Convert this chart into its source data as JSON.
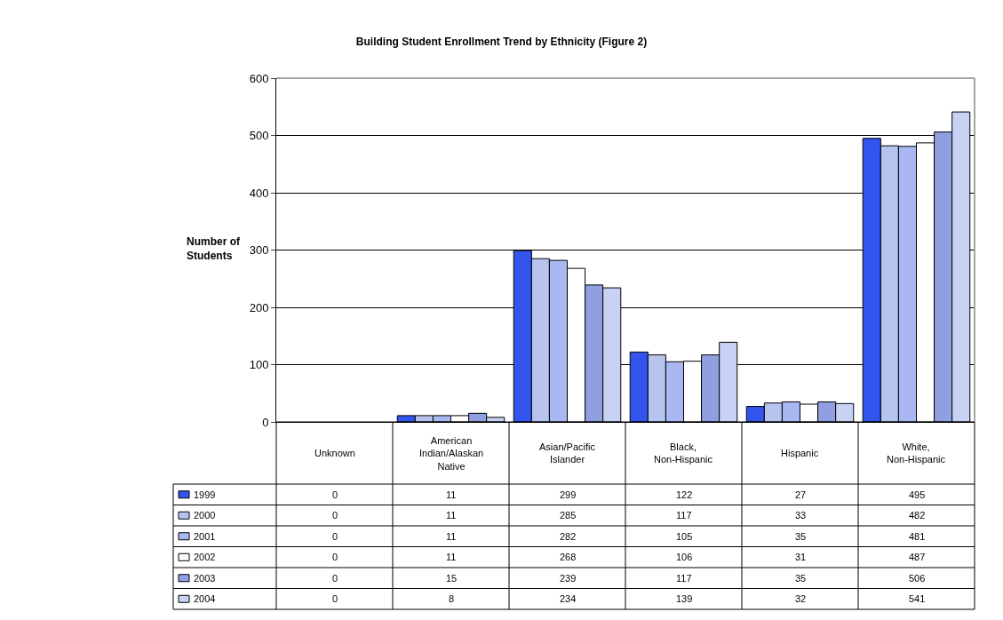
{
  "chart_data": {
    "type": "bar",
    "title": "Building Student Enrollment Trend by Ethnicity (Figure 2)",
    "ylabel": "Number of Students",
    "categories": [
      "Unknown",
      "American Indian/Alaskan Native",
      "Asian/Pacific Islander",
      "Black, Non-Hispanic",
      "Hispanic",
      "White, Non-Hispanic"
    ],
    "series": [
      {
        "name": "1999",
        "color": "#3355ee",
        "values": [
          0,
          11,
          299,
          122,
          27,
          495
        ]
      },
      {
        "name": "2000",
        "color": "#b8c4f0",
        "values": [
          0,
          11,
          285,
          117,
          33,
          482
        ]
      },
      {
        "name": "2001",
        "color": "#a9b8f2",
        "values": [
          0,
          11,
          282,
          105,
          35,
          481
        ]
      },
      {
        "name": "2002",
        "color": "#ffffff",
        "values": [
          0,
          11,
          268,
          106,
          31,
          487
        ]
      },
      {
        "name": "2003",
        "color": "#8f9fe0",
        "values": [
          0,
          15,
          239,
          117,
          35,
          506
        ]
      },
      {
        "name": "2004",
        "color": "#c8d2f5",
        "values": [
          0,
          8,
          234,
          139,
          32,
          541
        ]
      }
    ],
    "ylim": [
      0,
      600
    ],
    "yticks": [
      0,
      100,
      200,
      300,
      400,
      500,
      600
    ],
    "grid": "y",
    "legend": "bottom left",
    "data_labels": true
  }
}
